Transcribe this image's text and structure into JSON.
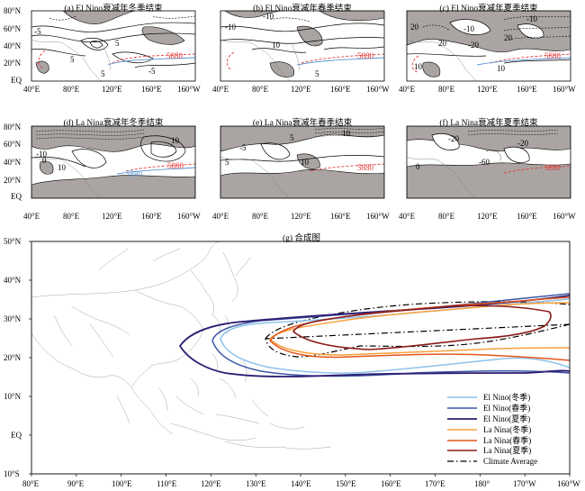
{
  "panels": [
    {
      "title": "(a) El Nino衰减年冬季结束",
      "labels": [
        "-5",
        "5",
        "5",
        "5",
        "-5",
        "5880"
      ]
    },
    {
      "title": "(b) El Nino衰减年春季结束",
      "labels": [
        "-10",
        "-10",
        "10",
        "5",
        "5880"
      ]
    },
    {
      "title": "(c) El Nino衰减年夏季结束",
      "labels": [
        "20",
        "-10",
        "-10",
        "20",
        "10",
        "20",
        "-20",
        "5880",
        "10"
      ]
    },
    {
      "title": "(d) La Nina衰减年冬季结束",
      "labels": [
        "10",
        "-10",
        "0",
        "10",
        "5880",
        "5880"
      ]
    },
    {
      "title": "(e) La Nina衰减年春季结束",
      "labels": [
        "10",
        "5",
        "-5",
        "5",
        "10",
        "5880"
      ]
    },
    {
      "title": "(f) La Nina衰减年夏季结束",
      "labels": [
        "-20",
        "-20",
        "0",
        "-60",
        "5880"
      ]
    }
  ],
  "small_y_ticks": [
    "80°N",
    "60°N",
    "40°N",
    "20°N",
    "EQ"
  ],
  "small_x_ticks": [
    "40°E",
    "80°E",
    "120°E",
    "160°E",
    "160°W"
  ],
  "composite": {
    "title": "(g) 合成图",
    "y_ticks": [
      "50°N",
      "40°N",
      "30°N",
      "20°N",
      "10°N",
      "EQ",
      "10°S"
    ],
    "x_ticks": [
      "80°E",
      "90°E",
      "100°E",
      "110°E",
      "120°E",
      "130°E",
      "140°E",
      "150°E",
      "160°E",
      "170°E",
      "180°",
      "170°W",
      "160°W"
    ]
  },
  "legend": [
    {
      "label": "El Nino(冬季)",
      "color": "#8ec2ea",
      "dash": false
    },
    {
      "label": "El Nino(春季)",
      "color": "#3d57a7",
      "dash": false
    },
    {
      "label": "El Nino(夏季)",
      "color": "#2d1d72",
      "dash": false
    },
    {
      "label": "La Nina(冬季)",
      "color": "#f7a13d",
      "dash": false
    },
    {
      "label": "La Nina(春季)",
      "color": "#e4561d",
      "dash": false
    },
    {
      "label": "La Nina(夏季)",
      "color": "#8a1c1c",
      "dash": false
    },
    {
      "label": "Climate Average",
      "color": "#000000",
      "dash": true
    }
  ],
  "colors": {
    "shade": "#aaa5a2",
    "line5880": "#e53b3b",
    "blue": "#5b95d5"
  }
}
